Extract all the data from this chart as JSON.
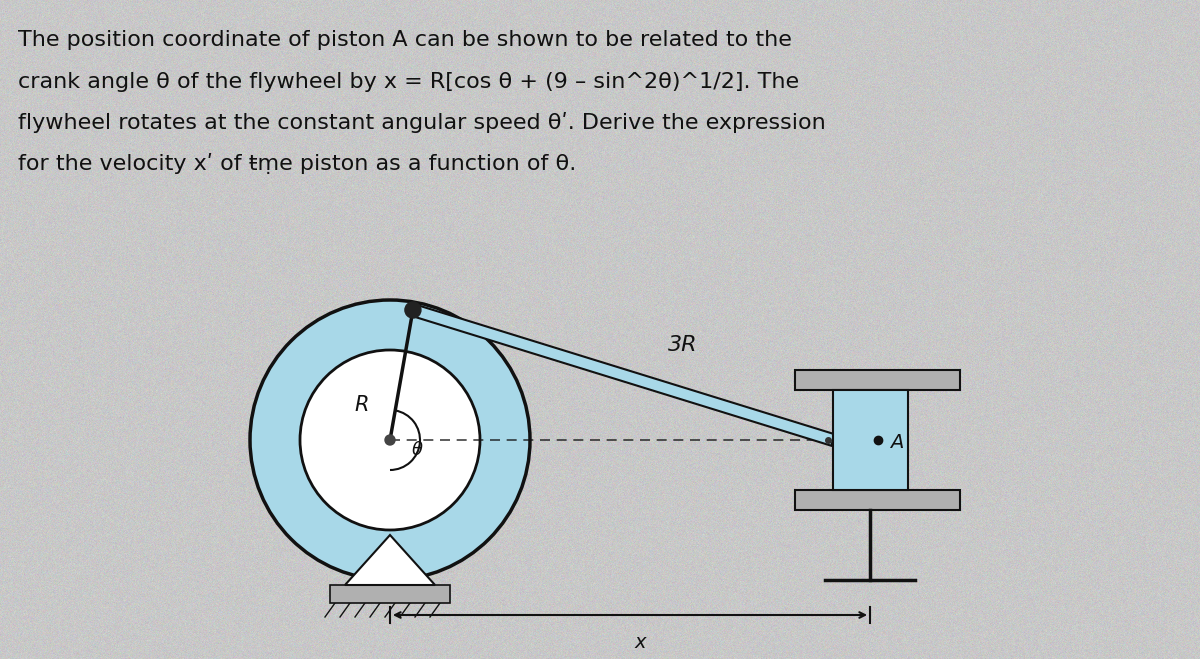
{
  "bg_color": "#c8c8c8",
  "text_color": "#111111",
  "text_line1": "The position coordinate of piston A can be shown to be related to the",
  "text_line2": "crank angle θ of the flywheel by x = R[cos θ + (9 – sin^2θ)^1/2]. The",
  "text_line3": "flywheel rotates at the constant angular speed θʹ. Derive the expression",
  "text_line4": "for the velocity xʹ of ŧṃe piston as a function of θ.",
  "font_size_text": 16,
  "flywheel_fill": "#a8d8e8",
  "flywheel_stroke": "#111111",
  "connecting_rod_label": "3R",
  "label_R": "R",
  "label_theta": "θ",
  "label_A": "A",
  "label_x": "x",
  "piston_fill": "#a8d8e8",
  "ground_fill": "#b0b0b0"
}
